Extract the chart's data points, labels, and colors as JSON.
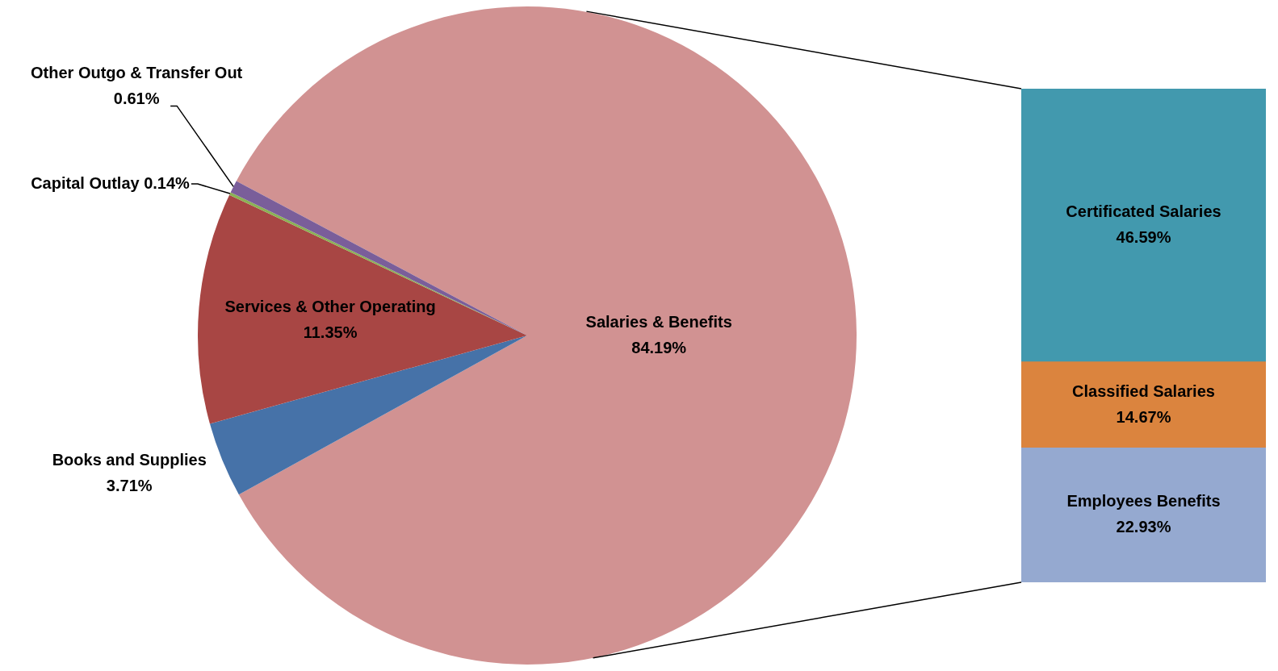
{
  "chart_data": [
    {
      "type": "pie",
      "categories": [
        "Salaries & Benefits",
        "Books and Supplies",
        "Services & Other Operating",
        "Capital Outlay",
        "Other Outgo & Transfer Out"
      ],
      "values": [
        84.19,
        3.71,
        11.35,
        0.14,
        0.61
      ],
      "colors": [
        "#d19292",
        "#4672a8",
        "#a84644",
        "#8bb254",
        "#7a5e9a"
      ],
      "value_labels": [
        "84.19%",
        "3.71%",
        "11.35%",
        "0.14%",
        "0.61%"
      ]
    },
    {
      "type": "bar",
      "stacked": true,
      "categories": [
        null
      ],
      "tick_labels": false,
      "series": [
        {
          "name": "Employees Benefits",
          "color": "#95a9d0",
          "values": [
            22.93
          ],
          "value_labels": [
            "22.93%"
          ]
        },
        {
          "name": "Classified Salaries",
          "color": "#db843e",
          "values": [
            14.67
          ],
          "value_labels": [
            "14.67%"
          ]
        },
        {
          "name": "Certificated Salaries",
          "color": "#4299ae",
          "values": [
            46.59
          ],
          "value_labels": [
            "46.59%"
          ]
        }
      ]
    }
  ]
}
